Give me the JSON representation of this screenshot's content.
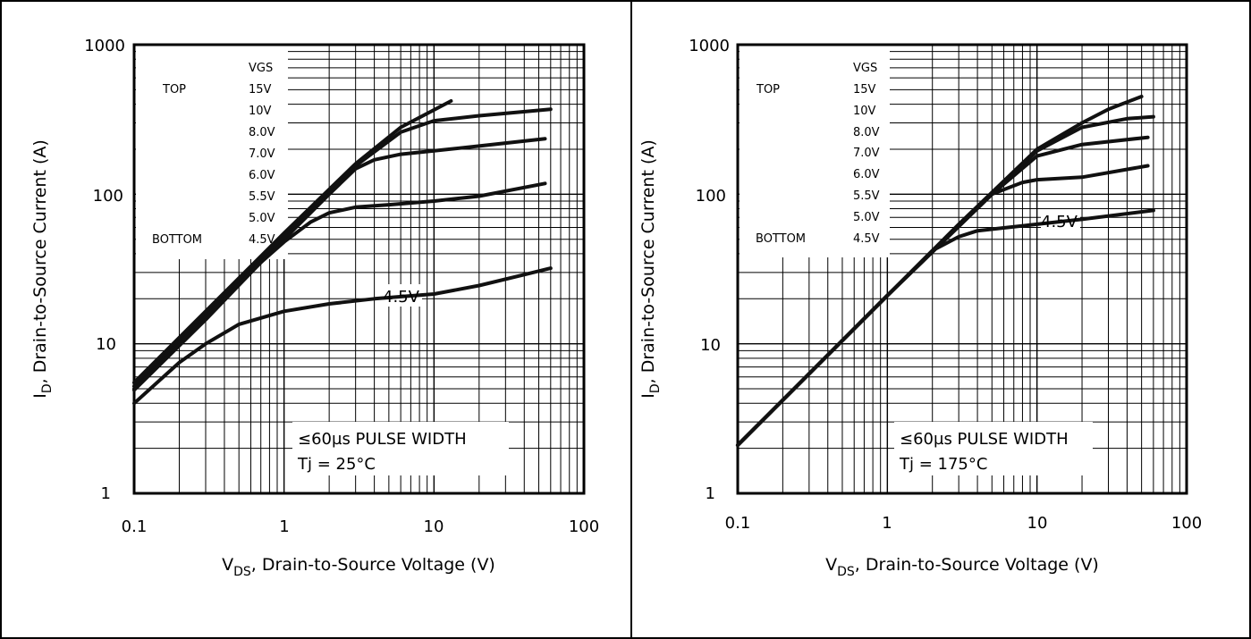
{
  "chart_data": [
    {
      "type": "line",
      "x_scale": "log",
      "y_scale": "log",
      "xlim": [
        0.1,
        100
      ],
      "ylim": [
        1,
        1000
      ],
      "grid": true,
      "x_ticks": [
        "0.1",
        "1",
        "10",
        "100"
      ],
      "y_ticks": [
        "1",
        "10",
        "100",
        "1000"
      ],
      "xlabel": {
        "main": "V",
        "sub": "DS",
        "rest": ", Drain-to-Source Voltage (V)"
      },
      "ylabel": {
        "main": "I",
        "sub": "D",
        "rest": ", Drain-to-Source Current (A)"
      },
      "legend": {
        "header": "VGS",
        "top_label": "TOP",
        "bottom_label": "BOTTOM",
        "entries": [
          "15V",
          "10V",
          "8.0V",
          "7.0V",
          "6.0V",
          "5.5V",
          "5.0V",
          "4.5V"
        ]
      },
      "annotations": [
        "≤60µs PULSE WIDTH",
        "Tj = 25°C"
      ],
      "curve_label": "4.5V",
      "curve_label_at": [
        4.5,
        21
      ],
      "series": [
        {
          "points": [
            [
              0.1,
              5.5
            ],
            [
              0.3,
              16.5
            ],
            [
              1,
              55
            ],
            [
              3,
              160
            ],
            [
              6,
              280
            ],
            [
              13,
              420
            ]
          ]
        },
        {
          "points": [
            [
              0.1,
              5.2
            ],
            [
              0.3,
              15.5
            ],
            [
              1,
              52
            ],
            [
              3,
              155
            ],
            [
              6,
              260
            ],
            [
              10,
              310
            ],
            [
              20,
              335
            ],
            [
              60,
              370
            ]
          ]
        },
        {
          "points": [
            [
              0.1,
              5.0
            ],
            [
              0.3,
              15
            ],
            [
              1,
              50
            ],
            [
              2,
              100
            ],
            [
              3,
              148
            ],
            [
              4,
              170
            ],
            [
              6,
              185
            ],
            [
              10,
              195
            ],
            [
              20,
              210
            ],
            [
              55,
              235
            ]
          ]
        },
        {
          "points": [
            [
              0.1,
              4.9
            ],
            [
              0.3,
              14.5
            ],
            [
              0.7,
              35
            ],
            [
              1,
              48
            ],
            [
              1.5,
              65
            ],
            [
              2,
              75
            ],
            [
              3,
              82
            ],
            [
              5,
              85
            ],
            [
              10,
              90
            ],
            [
              20,
              97
            ],
            [
              55,
              118
            ]
          ]
        },
        {
          "points": [
            [
              0.1,
              4.0
            ],
            [
              0.2,
              7.5
            ],
            [
              0.3,
              10
            ],
            [
              0.5,
              13.5
            ],
            [
              1,
              16.5
            ],
            [
              2,
              18.5
            ],
            [
              4,
              20
            ],
            [
              10,
              21.5
            ],
            [
              20,
              24.5
            ],
            [
              40,
              29
            ],
            [
              60,
              32
            ]
          ]
        }
      ]
    },
    {
      "type": "line",
      "x_scale": "log",
      "y_scale": "log",
      "xlim": [
        0.1,
        100
      ],
      "ylim": [
        1,
        1000
      ],
      "grid": true,
      "x_ticks": [
        "0.1",
        "1",
        "10",
        "100"
      ],
      "y_ticks": [
        "1",
        "10",
        "100",
        "1000"
      ],
      "xlabel": {
        "main": "V",
        "sub": "DS",
        "rest": ", Drain-to-Source Voltage (V)"
      },
      "ylabel": {
        "main": "I",
        "sub": "D",
        "rest": ", Drain-to-Source Current (A)"
      },
      "legend": {
        "header": "VGS",
        "top_label": "TOP",
        "bottom_label": "BOTTOM",
        "entries": [
          "15V",
          "10V",
          "8.0V",
          "7.0V",
          "6.0V",
          "5.5V",
          "5.0V",
          "4.5V"
        ]
      },
      "annotations": [
        "≤60µs PULSE WIDTH",
        "Tj = 175°C"
      ],
      "curve_label": "4.5V",
      "curve_label_at": [
        11,
        66
      ],
      "series": [
        {
          "points": [
            [
              0.1,
              2.1
            ],
            [
              0.3,
              6.3
            ],
            [
              1,
              21
            ],
            [
              3,
              63
            ],
            [
              10,
              200
            ],
            [
              20,
              300
            ],
            [
              30,
              370
            ],
            [
              50,
              450
            ]
          ]
        },
        {
          "points": [
            [
              0.1,
              2.1
            ],
            [
              1,
              21
            ],
            [
              5,
              100
            ],
            [
              10,
              195
            ],
            [
              20,
              280
            ],
            [
              40,
              320
            ],
            [
              60,
              330
            ]
          ]
        },
        {
          "points": [
            [
              0.1,
              2.1
            ],
            [
              1,
              21
            ],
            [
              5,
              100
            ],
            [
              10,
              180
            ],
            [
              20,
              215
            ],
            [
              55,
              240
            ]
          ]
        },
        {
          "points": [
            [
              0.1,
              2.1
            ],
            [
              1,
              21
            ],
            [
              5,
              100
            ],
            [
              8,
              120
            ],
            [
              10,
              125
            ],
            [
              20,
              130
            ],
            [
              55,
              155
            ]
          ]
        },
        {
          "points": [
            [
              0.1,
              2.1
            ],
            [
              1,
              21
            ],
            [
              2,
              42
            ],
            [
              3,
              52
            ],
            [
              4,
              57
            ],
            [
              10,
              63
            ],
            [
              20,
              68
            ],
            [
              60,
              78
            ]
          ]
        }
      ]
    }
  ]
}
